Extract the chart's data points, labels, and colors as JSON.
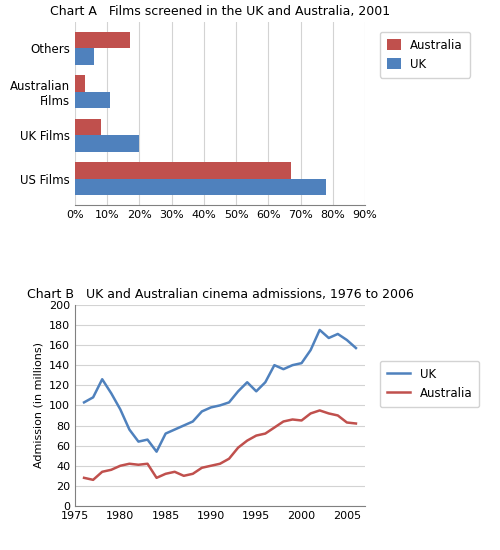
{
  "chart_a": {
    "title": "Chart A   Films screened in the UK and Australia, 2001",
    "categories": [
      "US Films",
      "UK Films",
      "Australian\nFilms",
      "Others"
    ],
    "australia_values": [
      0.67,
      0.08,
      0.03,
      0.17
    ],
    "uk_values": [
      0.78,
      0.2,
      0.11,
      0.06
    ],
    "australia_color": "#C0504D",
    "uk_color": "#4F81BD",
    "xticks": [
      0.0,
      0.1,
      0.2,
      0.3,
      0.4,
      0.5,
      0.6,
      0.7,
      0.8,
      0.9
    ],
    "xtick_labels": [
      "0%",
      "10%",
      "20%",
      "30%",
      "40%",
      "50%",
      "60%",
      "70%",
      "80%",
      "90%"
    ]
  },
  "chart_b": {
    "title": "Chart B   UK and Australian cinema admissions, 1976 to 2006",
    "ylabel": "Admission (in millions)",
    "uk_color": "#4F81BD",
    "australia_color": "#C0504D",
    "years": [
      1976,
      1977,
      1978,
      1979,
      1980,
      1981,
      1982,
      1983,
      1984,
      1985,
      1986,
      1987,
      1988,
      1989,
      1990,
      1991,
      1992,
      1993,
      1994,
      1995,
      1996,
      1997,
      1998,
      1999,
      2000,
      2001,
      2002,
      2003,
      2004,
      2005,
      2006
    ],
    "uk_values": [
      103,
      108,
      126,
      112,
      96,
      76,
      64,
      66,
      54,
      72,
      76,
      80,
      84,
      94,
      98,
      100,
      103,
      114,
      123,
      114,
      123,
      140,
      136,
      140,
      142,
      155,
      175,
      167,
      171,
      165,
      157
    ],
    "aus_values": [
      28,
      26,
      34,
      36,
      40,
      42,
      41,
      42,
      28,
      32,
      34,
      30,
      32,
      38,
      40,
      42,
      47,
      58,
      65,
      70,
      72,
      78,
      84,
      86,
      85,
      92,
      95,
      92,
      90,
      83,
      82
    ],
    "yticks": [
      0,
      20,
      40,
      60,
      80,
      100,
      120,
      140,
      160,
      180,
      200
    ],
    "xticks": [
      1975,
      1980,
      1985,
      1990,
      1995,
      2000,
      2005
    ]
  }
}
